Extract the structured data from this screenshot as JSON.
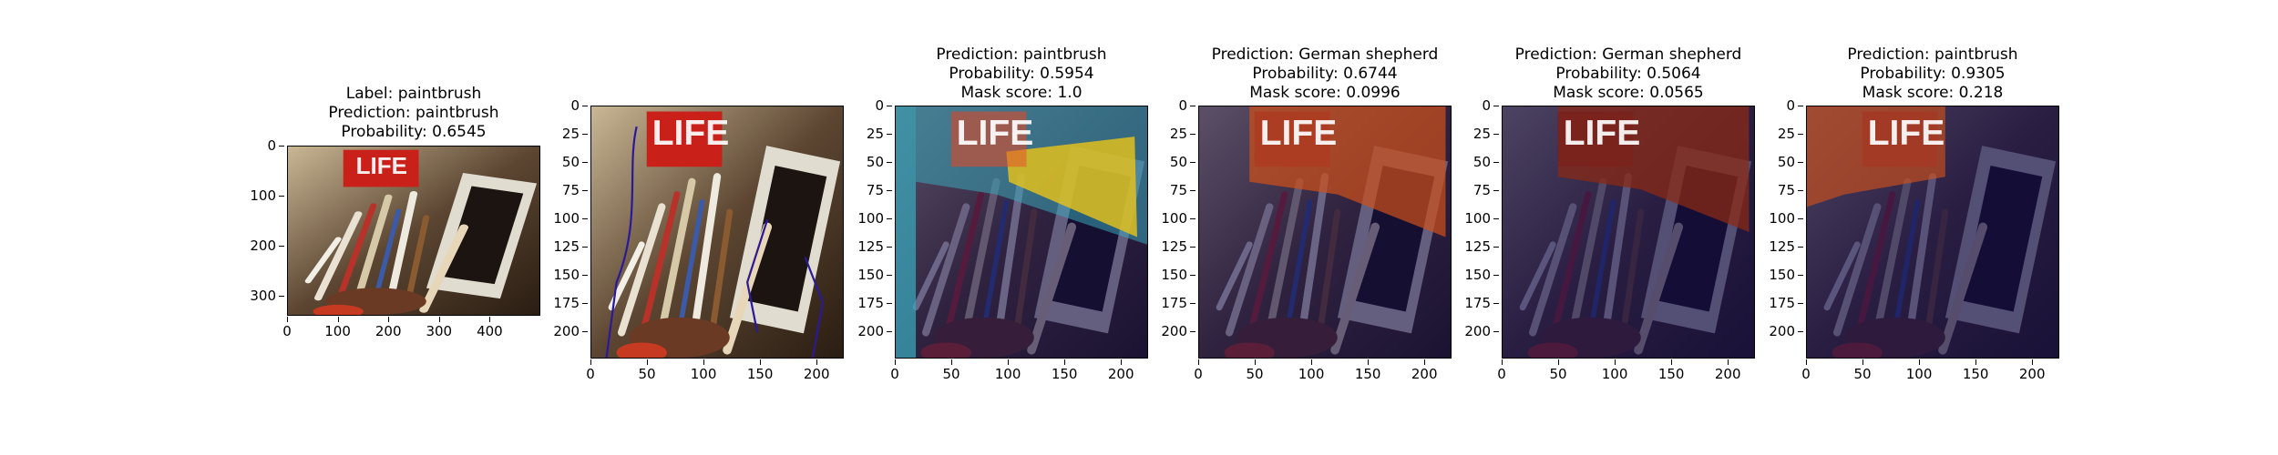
{
  "panels": [
    {
      "title_lines": [
        "Label: paintbrush",
        "Prediction: paintbrush",
        "Probability: 0.6545"
      ],
      "y_ticks": [
        "0",
        "100",
        "200",
        "300"
      ],
      "x_ticks": [
        "0",
        "100",
        "200",
        "300",
        "400"
      ],
      "overlay": "none"
    },
    {
      "title_lines": [],
      "y_ticks": [
        "0",
        "25",
        "50",
        "75",
        "100",
        "125",
        "150",
        "175",
        "200"
      ],
      "x_ticks": [
        "0",
        "50",
        "100",
        "150",
        "200"
      ],
      "overlay": "contour"
    },
    {
      "title_lines": [
        "Prediction: paintbrush",
        "Probability: 0.5954",
        "Mask score: 1.0"
      ],
      "y_ticks": [
        "0",
        "25",
        "50",
        "75",
        "100",
        "125",
        "150",
        "175",
        "200"
      ],
      "x_ticks": [
        "0",
        "50",
        "100",
        "150",
        "200"
      ],
      "overlay": "mask-yellow"
    },
    {
      "title_lines": [
        "Prediction: German shepherd",
        "Probability: 0.6744",
        "Mask score: 0.0996"
      ],
      "y_ticks": [
        "0",
        "25",
        "50",
        "75",
        "100",
        "125",
        "150",
        "175",
        "200"
      ],
      "x_ticks": [
        "0",
        "50",
        "100",
        "150",
        "200"
      ],
      "overlay": "mask-orange"
    },
    {
      "title_lines": [
        "Prediction: German shepherd",
        "Probability: 0.5064",
        "Mask score: 0.0565"
      ],
      "y_ticks": [
        "0",
        "25",
        "50",
        "75",
        "100",
        "125",
        "150",
        "175",
        "200"
      ],
      "x_ticks": [
        "0",
        "50",
        "100",
        "150",
        "200"
      ],
      "overlay": "mask-darkred"
    },
    {
      "title_lines": [
        "Prediction: paintbrush",
        "Probability: 0.9305",
        "Mask score: 0.218"
      ],
      "y_ticks": [
        "0",
        "25",
        "50",
        "75",
        "100",
        "125",
        "150",
        "175",
        "200"
      ],
      "x_ticks": [
        "0",
        "50",
        "100",
        "150",
        "200"
      ],
      "overlay": "mask-topleft"
    }
  ],
  "image": {
    "logo_text": "LIFE"
  },
  "colors": {
    "mask_dark": "#120c4a",
    "mask_yellow": "#e8c21a",
    "mask_orange": "#d0501a",
    "mask_cyan": "#3aa6b8",
    "contour": "#2a1a9a"
  }
}
